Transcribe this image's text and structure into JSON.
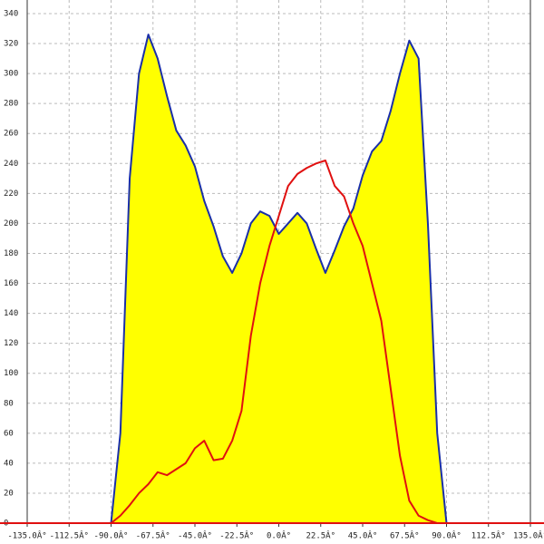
{
  "chart_data": {
    "type": "area",
    "x": [
      -90,
      -85,
      -80,
      -75,
      -70,
      -65,
      -60,
      -55,
      -50,
      -45,
      -40,
      -35,
      -30,
      -25,
      -20,
      -15,
      -10,
      -5,
      0,
      5,
      10,
      15,
      20,
      25,
      30,
      35,
      40,
      45,
      50,
      55,
      60,
      65,
      70,
      75,
      80,
      85,
      90
    ],
    "series": [
      {
        "color": "#1a2fa8",
        "fill": "#ffff00",
        "values": [
          0,
          60,
          230,
          300,
          326,
          310,
          285,
          262,
          252,
          238,
          215,
          198,
          178,
          167,
          180,
          200,
          208,
          205,
          193,
          200,
          207,
          200,
          183,
          167,
          182,
          198,
          210,
          232,
          248,
          255,
          275,
          300,
          322,
          310,
          200,
          60,
          0
        ]
      },
      {
        "color": "#e01010",
        "values": [
          0,
          5,
          12,
          20,
          26,
          34,
          32,
          36,
          40,
          50,
          55,
          42,
          43,
          55,
          75,
          125,
          160,
          185,
          205,
          225,
          233,
          237,
          240,
          242,
          225,
          218,
          200,
          185,
          160,
          135,
          90,
          45,
          15,
          5,
          2,
          0,
          0
        ]
      }
    ],
    "xlim": [
      -135,
      135
    ],
    "xticks": [
      {
        "value": -135,
        "label": "-135.0Â°"
      },
      {
        "value": -112.5,
        "label": "-112.5Â°"
      },
      {
        "value": -90,
        "label": "-90.0Â°"
      },
      {
        "value": -67.5,
        "label": "-67.5Â°"
      },
      {
        "value": -45,
        "label": "-45.0Â°"
      },
      {
        "value": -22.5,
        "label": "-22.5Â°"
      },
      {
        "value": 0,
        "label": "0.0Â°"
      },
      {
        "value": 22.5,
        "label": "22.5Â°"
      },
      {
        "value": 45,
        "label": "45.0Â°"
      },
      {
        "value": 67.5,
        "label": "67.5Â°"
      },
      {
        "value": 90,
        "label": "90.0Â°"
      },
      {
        "value": 112.5,
        "label": "112.5Â°"
      },
      {
        "value": 135,
        "label": "135.0Â°"
      }
    ],
    "ylim": [
      0,
      340
    ],
    "yticks": [
      0,
      20,
      40,
      60,
      80,
      100,
      120,
      140,
      160,
      180,
      200,
      220,
      240,
      260,
      280,
      300,
      320,
      340
    ],
    "grid": true
  }
}
